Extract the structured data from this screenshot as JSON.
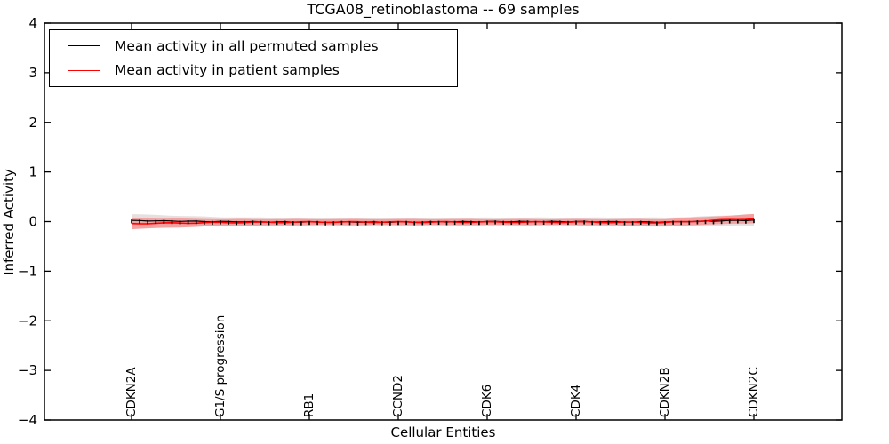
{
  "figure": {
    "title": "TCGA08_retinoblastoma -- 69 samples",
    "xlabel": "Cellular Entities",
    "ylabel": "Inferred Activity"
  },
  "legend": {
    "entries": [
      {
        "label": "Mean activity in all permuted samples",
        "color": "#000000"
      },
      {
        "label": "Mean activity in patient samples",
        "color": "#ff0000"
      }
    ]
  },
  "chart_data": {
    "type": "line",
    "title": "TCGA08_retinoblastoma -- 69 samples",
    "xlabel": "Cellular Entities",
    "ylabel": "Inferred Activity",
    "ylim": [
      -4,
      4
    ],
    "yticks": [
      -4,
      -3,
      -2,
      -1,
      0,
      1,
      2,
      3,
      4
    ],
    "categories": [
      "CDKN2A",
      "G1/S progression",
      "RB1",
      "CCND2",
      "CDK6",
      "CDK4",
      "CDKN2B",
      "CDKN2C"
    ],
    "n_points": 78,
    "points_per_category": 11,
    "grid": false,
    "legend_position": "upper left",
    "series": [
      {
        "name": "Mean activity in all permuted samples",
        "color": "#000000",
        "line_width": 1.2,
        "marker": "vertical-dash",
        "values_at_categories": [
          0.02,
          0.0,
          -0.01,
          -0.01,
          0.0,
          0.0,
          -0.01,
          0.03
        ],
        "band_half_width_at_categories": [
          0.13,
          0.09,
          0.08,
          0.08,
          0.08,
          0.08,
          0.09,
          0.11
        ],
        "band_color": "#e6dfdf"
      },
      {
        "name": "Mean activity in patient samples",
        "color": "#ff0000",
        "line_width": 1.6,
        "marker": "none",
        "values_at_categories": [
          -0.04,
          -0.02,
          -0.01,
          -0.01,
          -0.01,
          -0.01,
          -0.02,
          0.06
        ],
        "band_half_width_at_categories": [
          0.11,
          0.07,
          0.06,
          0.06,
          0.06,
          0.06,
          0.07,
          0.09
        ],
        "band_color": "#f3a2a2"
      }
    ]
  }
}
